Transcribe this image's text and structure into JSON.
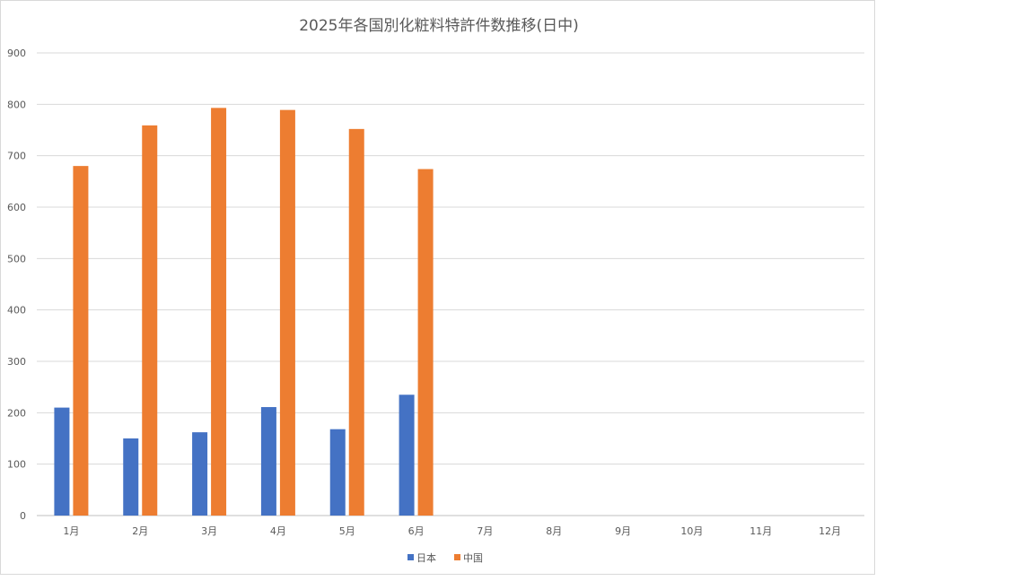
{
  "chart_data": {
    "type": "bar",
    "title": "2025年各国別化粧料特許件数推移(日中)",
    "xlabel": "",
    "ylabel": "",
    "categories": [
      "1月",
      "2月",
      "3月",
      "4月",
      "5月",
      "6月",
      "7月",
      "8月",
      "9月",
      "10月",
      "11月",
      "12月"
    ],
    "ylim": [
      0,
      900
    ],
    "yticks": [
      0,
      100,
      200,
      300,
      400,
      500,
      600,
      700,
      800,
      900
    ],
    "grid": true,
    "legend_position": "bottom",
    "series": [
      {
        "name": "日本",
        "color": "#4472C4",
        "values": [
          210,
          150,
          162,
          211,
          168,
          235,
          null,
          null,
          null,
          null,
          null,
          null
        ]
      },
      {
        "name": "中国",
        "color": "#ED7D31",
        "values": [
          680,
          759,
          793,
          789,
          752,
          674,
          null,
          null,
          null,
          null,
          null,
          null
        ]
      }
    ]
  }
}
